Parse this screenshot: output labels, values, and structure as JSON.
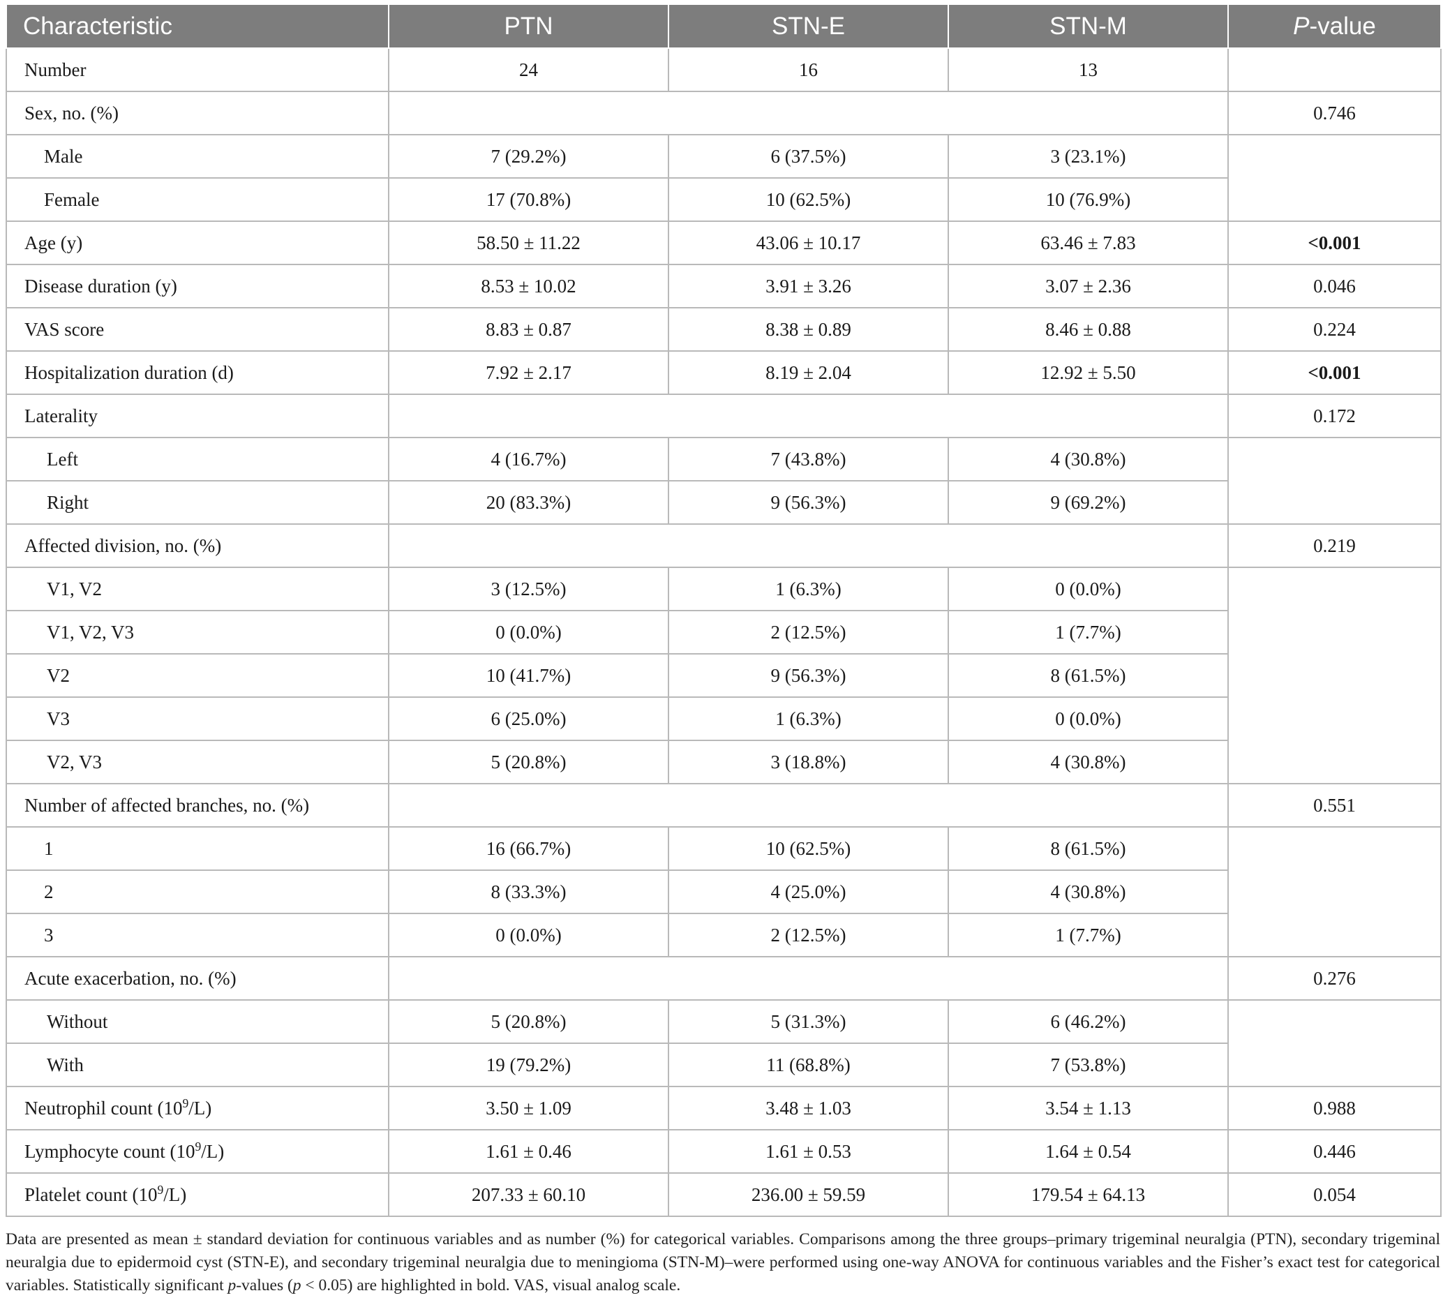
{
  "table": {
    "headers": [
      "Characteristic",
      "PTN",
      "STN-E",
      "STN-M",
      "P",
      "-value"
    ],
    "rows": [
      {
        "label": "Number",
        "ptn": "24",
        "stne": "16",
        "stnm": "13",
        "p": ""
      },
      {
        "label": "Sex, no. (%)",
        "ptn": "",
        "stne": "",
        "stnm": "",
        "p": "0.746"
      },
      {
        "label": "Male",
        "ptn": "7 (29.2%)",
        "stne": "6 (37.5%)",
        "stnm": "3 (23.1%)",
        "p": ""
      },
      {
        "label": "Female",
        "ptn": "17 (70.8%)",
        "stne": "10 (62.5%)",
        "stnm": "10 (76.9%)",
        "p": ""
      },
      {
        "label": "Age (y)",
        "ptn": "58.50 ± 11.22",
        "stne": "43.06 ± 10.17",
        "stnm": "63.46 ± 7.83",
        "p": "<0.001"
      },
      {
        "label": "Disease duration (y)",
        "ptn": "8.53 ± 10.02",
        "stne": "3.91 ± 3.26",
        "stnm": "3.07 ± 2.36",
        "p": "0.046"
      },
      {
        "label": "VAS score",
        "ptn": "8.83 ± 0.87",
        "stne": "8.38 ± 0.89",
        "stnm": "8.46 ± 0.88",
        "p": "0.224"
      },
      {
        "label": "Hospitalization duration (d)",
        "ptn": "7.92 ± 2.17",
        "stne": "8.19 ± 2.04",
        "stnm": "12.92 ± 5.50",
        "p": "<0.001"
      },
      {
        "label": "Laterality",
        "ptn": "",
        "stne": "",
        "stnm": "",
        "p": "0.172"
      },
      {
        "label": "Left",
        "ptn": "4 (16.7%)",
        "stne": "7 (43.8%)",
        "stnm": "4 (30.8%)",
        "p": ""
      },
      {
        "label": "Right",
        "ptn": "20 (83.3%)",
        "stne": "9 (56.3%)",
        "stnm": "9 (69.2%)",
        "p": ""
      },
      {
        "label": "Affected division, no. (%)",
        "ptn": "",
        "stne": "",
        "stnm": "",
        "p": "0.219"
      },
      {
        "label": "V1, V2",
        "ptn": "3 (12.5%)",
        "stne": "1 (6.3%)",
        "stnm": "0 (0.0%)",
        "p": ""
      },
      {
        "label": "V1, V2, V3",
        "ptn": "0 (0.0%)",
        "stne": "2 (12.5%)",
        "stnm": "1 (7.7%)",
        "p": ""
      },
      {
        "label": "V2",
        "ptn": "10 (41.7%)",
        "stne": "9 (56.3%)",
        "stnm": "8 (61.5%)",
        "p": ""
      },
      {
        "label": "V3",
        "ptn": "6 (25.0%)",
        "stne": "1 (6.3%)",
        "stnm": "0 (0.0%)",
        "p": ""
      },
      {
        "label": "V2, V3",
        "ptn": "5 (20.8%)",
        "stne": "3 (18.8%)",
        "stnm": "4 (30.8%)",
        "p": ""
      },
      {
        "label": "Number of affected branches, no. (%)",
        "ptn": "",
        "stne": "",
        "stnm": "",
        "p": "0.551"
      },
      {
        "label": "1",
        "ptn": "16 (66.7%)",
        "stne": "10 (62.5%)",
        "stnm": "8 (61.5%)",
        "p": ""
      },
      {
        "label": "2",
        "ptn": "8 (33.3%)",
        "stne": "4 (25.0%)",
        "stnm": "4 (30.8%)",
        "p": ""
      },
      {
        "label": "3",
        "ptn": "0 (0.0%)",
        "stne": "2 (12.5%)",
        "stnm": "1 (7.7%)",
        "p": ""
      },
      {
        "label": "Acute exacerbation, no. (%)",
        "ptn": "",
        "stne": "",
        "stnm": "",
        "p": "0.276"
      },
      {
        "label": "Without",
        "ptn": "5 (20.8%)",
        "stne": "5 (31.3%)",
        "stnm": "6 (46.2%)",
        "p": ""
      },
      {
        "label": "With",
        "ptn": "19 (79.2%)",
        "stne": "11 (68.8%)",
        "stnm": "7 (53.8%)",
        "p": ""
      },
      {
        "label": "Neutrophil count (10",
        "label_sup": "9",
        "label_post": "/L)",
        "ptn": "3.50 ± 1.09",
        "stne": "3.48 ± 1.03",
        "stnm": "3.54 ± 1.13",
        "p": "0.988"
      },
      {
        "label": "Lymphocyte count (10",
        "label_sup": "9",
        "label_post": "/L)",
        "ptn": "1.61 ± 0.46",
        "stne": "1.61 ± 0.53",
        "stnm": "1.64 ± 0.54",
        "p": "0.446"
      },
      {
        "label": "Platelet count (10",
        "label_sup": "9",
        "label_post": "/L)",
        "ptn": "207.33 ± 60.10",
        "stne": "236.00 ± 59.59",
        "stnm": "179.54 ± 64.13",
        "p": "0.054"
      }
    ]
  },
  "footnote": {
    "part1": "Data are presented as mean ± standard deviation for continuous variables and as number (%) for categorical variables. Comparisons among the three groups–primary trigeminal neuralgia (PTN), secondary trigeminal neuralgia due to epidermoid cyst (STN-E), and secondary trigeminal neuralgia due to meningioma (STN-M)–were performed using one-way ANOVA for continuous variables and the Fisher’s exact test for categorical variables. Statistically significant ",
    "p_italic": "p",
    "part2": "-values (",
    "p_italic2": "p",
    "part3": " < 0.05) are highlighted in bold. VAS, visual analog scale."
  }
}
